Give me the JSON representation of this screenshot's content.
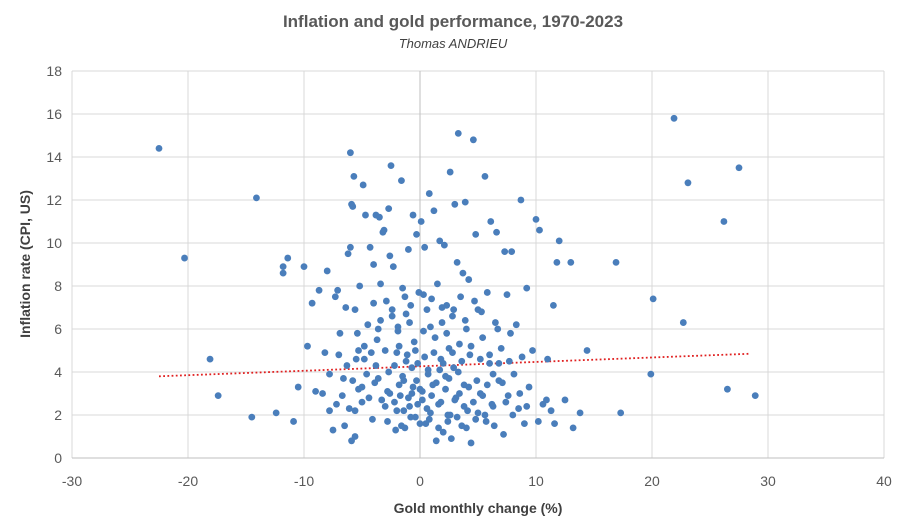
{
  "chart_data": {
    "type": "scatter",
    "title": "Inflation and gold performance, 1970-2023",
    "subtitle": "Thomas ANDRIEU",
    "xlabel": "Gold monthly change (%)",
    "ylabel": "Inflation rate (CPI, US)",
    "xlim": [
      -30,
      40
    ],
    "ylim": [
      0,
      18
    ],
    "xticks": [
      -30,
      -20,
      -10,
      0,
      10,
      20,
      30,
      40
    ],
    "yticks": [
      0,
      2,
      4,
      6,
      8,
      10,
      12,
      14,
      16,
      18
    ],
    "grid": true,
    "legend": "none",
    "colors": {
      "points": "#4a7ebb",
      "trendline": "#e02020"
    },
    "trendline": {
      "style": "dotted",
      "x": [
        -22.5,
        28.5
      ],
      "y": [
        3.8,
        4.85
      ]
    },
    "points": [
      [
        -22.5,
        14.4
      ],
      [
        -20.3,
        9.3
      ],
      [
        -18.1,
        4.6
      ],
      [
        -17.4,
        2.9
      ],
      [
        -14.5,
        1.9
      ],
      [
        -14.1,
        12.1
      ],
      [
        -12.4,
        2.1
      ],
      [
        -11.8,
        8.6
      ],
      [
        -11.8,
        8.9
      ],
      [
        -11.4,
        9.3
      ],
      [
        -10.9,
        1.7
      ],
      [
        -10.5,
        3.3
      ],
      [
        -10.0,
        8.9
      ],
      [
        -9.7,
        5.2
      ],
      [
        -9.3,
        7.2
      ],
      [
        -9.0,
        3.1
      ],
      [
        -8.7,
        7.8
      ],
      [
        -8.2,
        4.9
      ],
      [
        -8.0,
        8.7
      ],
      [
        -7.8,
        2.2
      ],
      [
        -7.5,
        1.3
      ],
      [
        -7.3,
        7.5
      ],
      [
        -7.1,
        7.8
      ],
      [
        -7.0,
        4.8
      ],
      [
        -6.9,
        5.8
      ],
      [
        -6.7,
        2.9
      ],
      [
        -6.5,
        1.5
      ],
      [
        -6.4,
        7.0
      ],
      [
        -6.3,
        4.3
      ],
      [
        -6.2,
        9.5
      ],
      [
        -6.1,
        2.3
      ],
      [
        -6.0,
        14.2
      ],
      [
        -6.0,
        9.8
      ],
      [
        -5.9,
        0.8
      ],
      [
        -5.9,
        11.8
      ],
      [
        -5.8,
        11.7
      ],
      [
        -5.8,
        3.6
      ],
      [
        -5.7,
        13.1
      ],
      [
        -5.6,
        6.9
      ],
      [
        -5.6,
        1.0
      ],
      [
        -5.5,
        4.6
      ],
      [
        -5.4,
        5.8
      ],
      [
        -5.3,
        3.2
      ],
      [
        -5.2,
        8.0
      ],
      [
        -5.0,
        2.6
      ],
      [
        -4.9,
        12.7
      ],
      [
        -4.8,
        5.2
      ],
      [
        -4.7,
        11.3
      ],
      [
        -4.6,
        3.9
      ],
      [
        -4.5,
        6.2
      ],
      [
        -4.3,
        9.8
      ],
      [
        -4.2,
        4.9
      ],
      [
        -4.1,
        1.8
      ],
      [
        -4.0,
        9.0
      ],
      [
        -3.9,
        3.5
      ],
      [
        -3.8,
        11.3
      ],
      [
        -3.7,
        5.5
      ],
      [
        -3.6,
        6.0
      ],
      [
        -3.5,
        11.2
      ],
      [
        -3.4,
        8.1
      ],
      [
        -3.3,
        2.7
      ],
      [
        -3.2,
        10.5
      ],
      [
        -3.1,
        10.6
      ],
      [
        -3.0,
        5.0
      ],
      [
        -2.9,
        7.3
      ],
      [
        -2.8,
        3.1
      ],
      [
        -2.7,
        11.6
      ],
      [
        -2.6,
        9.4
      ],
      [
        -2.5,
        13.6
      ],
      [
        -2.4,
        6.6
      ],
      [
        -2.3,
        8.9
      ],
      [
        -2.2,
        4.3
      ],
      [
        -2.1,
        1.3
      ],
      [
        -2.0,
        2.2
      ],
      [
        -1.9,
        6.1
      ],
      [
        -1.8,
        5.2
      ],
      [
        -1.7,
        2.9
      ],
      [
        -1.6,
        12.9
      ],
      [
        -1.5,
        7.9
      ],
      [
        -1.4,
        3.6
      ],
      [
        -1.3,
        1.4
      ],
      [
        -1.2,
        6.7
      ],
      [
        -1.1,
        4.8
      ],
      [
        -1.0,
        9.7
      ],
      [
        -0.9,
        2.4
      ],
      [
        -0.8,
        7.1
      ],
      [
        -0.7,
        3.0
      ],
      [
        -0.6,
        11.3
      ],
      [
        -0.5,
        5.4
      ],
      [
        -0.4,
        1.9
      ],
      [
        -0.3,
        10.4
      ],
      [
        -0.2,
        4.4
      ],
      [
        -0.1,
        7.7
      ],
      [
        0.0,
        3.2
      ],
      [
        0.1,
        11.0
      ],
      [
        0.2,
        2.7
      ],
      [
        0.3,
        5.9
      ],
      [
        0.4,
        9.8
      ],
      [
        0.5,
        1.6
      ],
      [
        0.6,
        6.9
      ],
      [
        0.7,
        4.1
      ],
      [
        0.8,
        12.3
      ],
      [
        0.9,
        2.1
      ],
      [
        1.0,
        7.4
      ],
      [
        1.1,
        3.4
      ],
      [
        1.2,
        11.5
      ],
      [
        1.3,
        5.6
      ],
      [
        1.4,
        0.8
      ],
      [
        1.5,
        8.1
      ],
      [
        1.6,
        2.5
      ],
      [
        1.7,
        10.1
      ],
      [
        1.8,
        4.6
      ],
      [
        1.9,
        6.3
      ],
      [
        2.0,
        1.2
      ],
      [
        2.1,
        9.9
      ],
      [
        2.2,
        3.8
      ],
      [
        2.3,
        7.1
      ],
      [
        2.4,
        2.0
      ],
      [
        2.5,
        5.1
      ],
      [
        2.6,
        13.3
      ],
      [
        2.7,
        0.9
      ],
      [
        2.8,
        6.6
      ],
      [
        2.9,
        4.2
      ],
      [
        3.0,
        11.8
      ],
      [
        3.1,
        2.8
      ],
      [
        3.2,
        9.1
      ],
      [
        3.3,
        15.1
      ],
      [
        3.4,
        5.3
      ],
      [
        3.5,
        7.5
      ],
      [
        3.6,
        1.5
      ],
      [
        3.7,
        8.6
      ],
      [
        3.8,
        3.4
      ],
      [
        3.9,
        11.9
      ],
      [
        4.0,
        6.0
      ],
      [
        4.1,
        2.2
      ],
      [
        4.2,
        8.3
      ],
      [
        4.3,
        4.8
      ],
      [
        4.4,
        0.7
      ],
      [
        4.6,
        14.8
      ],
      [
        4.8,
        10.4
      ],
      [
        5.0,
        6.9
      ],
      [
        5.2,
        3.0
      ],
      [
        5.4,
        5.6
      ],
      [
        5.6,
        13.1
      ],
      [
        5.7,
        1.7
      ],
      [
        5.8,
        7.7
      ],
      [
        6.0,
        4.4
      ],
      [
        6.1,
        11.0
      ],
      [
        6.3,
        2.4
      ],
      [
        6.5,
        6.3
      ],
      [
        6.6,
        10.5
      ],
      [
        6.8,
        3.6
      ],
      [
        7.0,
        5.1
      ],
      [
        7.2,
        1.1
      ],
      [
        7.3,
        9.6
      ],
      [
        7.5,
        7.6
      ],
      [
        7.6,
        2.9
      ],
      [
        7.8,
        5.8
      ],
      [
        7.9,
        9.6
      ],
      [
        8.1,
        3.9
      ],
      [
        8.3,
        6.2
      ],
      [
        8.5,
        2.3
      ],
      [
        8.7,
        12.0
      ],
      [
        8.8,
        4.7
      ],
      [
        9.0,
        1.6
      ],
      [
        9.2,
        7.9
      ],
      [
        9.4,
        3.3
      ],
      [
        9.7,
        5.0
      ],
      [
        10.0,
        11.1
      ],
      [
        10.2,
        1.7
      ],
      [
        10.3,
        10.6
      ],
      [
        10.6,
        2.5
      ],
      [
        10.9,
        2.7
      ],
      [
        11.0,
        4.6
      ],
      [
        11.3,
        2.2
      ],
      [
        11.5,
        7.1
      ],
      [
        11.6,
        1.6
      ],
      [
        11.8,
        9.1
      ],
      [
        12.0,
        10.1
      ],
      [
        12.5,
        2.7
      ],
      [
        13.0,
        9.1
      ],
      [
        13.2,
        1.4
      ],
      [
        13.8,
        2.1
      ],
      [
        14.4,
        5.0
      ],
      [
        16.9,
        9.1
      ],
      [
        17.3,
        2.1
      ],
      [
        19.9,
        3.9
      ],
      [
        20.1,
        7.4
      ],
      [
        21.9,
        15.8
      ],
      [
        22.7,
        6.3
      ],
      [
        23.1,
        12.8
      ],
      [
        26.2,
        11.0
      ],
      [
        26.5,
        3.2
      ],
      [
        27.5,
        13.5
      ],
      [
        28.9,
        2.9
      ],
      [
        -3.0,
        2.4
      ],
      [
        -2.6,
        3.0
      ],
      [
        -2.2,
        2.6
      ],
      [
        -1.8,
        3.4
      ],
      [
        -1.4,
        2.2
      ],
      [
        -1.0,
        2.8
      ],
      [
        -0.6,
        3.3
      ],
      [
        -0.2,
        2.5
      ],
      [
        0.2,
        3.1
      ],
      [
        0.6,
        2.3
      ],
      [
        1.0,
        2.9
      ],
      [
        1.4,
        3.5
      ],
      [
        1.8,
        2.6
      ],
      [
        2.2,
        3.2
      ],
      [
        2.6,
        2.0
      ],
      [
        3.0,
        2.7
      ],
      [
        3.4,
        3.0
      ],
      [
        3.8,
        2.4
      ],
      [
        4.2,
        3.3
      ],
      [
        4.6,
        2.6
      ],
      [
        5.0,
        2.1
      ],
      [
        5.4,
        2.9
      ],
      [
        5.8,
        3.4
      ],
      [
        6.2,
        2.5
      ],
      [
        -4.4,
        2.8
      ],
      [
        -5.0,
        3.3
      ],
      [
        -5.6,
        2.2
      ],
      [
        -6.6,
        3.7
      ],
      [
        -7.2,
        2.5
      ],
      [
        -3.6,
        3.7
      ],
      [
        -2.0,
        4.9
      ],
      [
        -1.2,
        4.5
      ],
      [
        -0.4,
        5.0
      ],
      [
        0.4,
        4.7
      ],
      [
        1.2,
        4.9
      ],
      [
        2.0,
        4.4
      ],
      [
        2.8,
        4.9
      ],
      [
        3.6,
        4.5
      ],
      [
        4.4,
        5.2
      ],
      [
        5.2,
        4.6
      ],
      [
        6.0,
        4.8
      ],
      [
        6.8,
        4.4
      ],
      [
        -2.8,
        1.7
      ],
      [
        -1.6,
        1.5
      ],
      [
        -0.8,
        1.9
      ],
      [
        0.0,
        1.6
      ],
      [
        0.8,
        1.8
      ],
      [
        1.6,
        1.4
      ],
      [
        2.4,
        1.7
      ],
      [
        3.2,
        1.9
      ],
      [
        4.0,
        1.4
      ],
      [
        4.8,
        1.8
      ],
      [
        5.6,
        2.0
      ],
      [
        6.4,
        1.5
      ],
      [
        7.4,
        2.6
      ],
      [
        8.0,
        2.0
      ],
      [
        8.6,
        3.0
      ],
      [
        9.2,
        2.4
      ],
      [
        -8.4,
        3.0
      ],
      [
        -7.8,
        3.9
      ],
      [
        -3.4,
        6.4
      ],
      [
        -1.9,
        5.9
      ],
      [
        -0.9,
        6.3
      ],
      [
        0.9,
        6.1
      ],
      [
        2.3,
        5.8
      ],
      [
        3.9,
        6.4
      ],
      [
        5.3,
        6.8
      ],
      [
        6.7,
        6.0
      ],
      [
        7.7,
        4.5
      ],
      [
        -4.0,
        7.2
      ],
      [
        4.7,
        7.3
      ],
      [
        -1.3,
        7.5
      ],
      [
        0.3,
        7.6
      ],
      [
        1.9,
        7.0
      ],
      [
        2.9,
        6.9
      ],
      [
        -2.4,
        6.9
      ],
      [
        -0.7,
        4.2
      ],
      [
        0.7,
        3.9
      ],
      [
        1.7,
        4.1
      ],
      [
        -1.5,
        3.8
      ],
      [
        2.5,
        3.7
      ],
      [
        3.3,
        4.0
      ],
      [
        -2.7,
        4.0
      ],
      [
        4.9,
        3.6
      ],
      [
        -0.3,
        3.6
      ],
      [
        6.3,
        3.9
      ],
      [
        -3.8,
        4.3
      ],
      [
        -4.8,
        4.6
      ],
      [
        7.1,
        3.5
      ],
      [
        -5.3,
        5.0
      ]
    ]
  }
}
